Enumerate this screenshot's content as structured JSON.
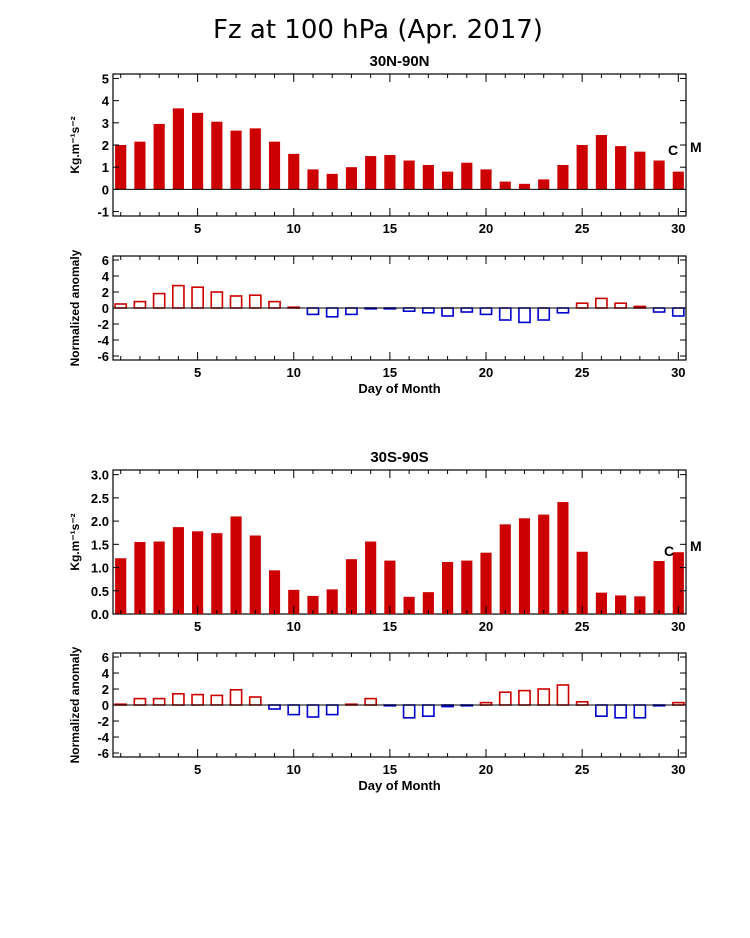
{
  "title": "Fz at 100 hPa (Apr. 2017)",
  "chart_data": [
    {
      "type": "bar",
      "title": "30N-90N",
      "ylabel": "Kg.m⁻¹s⁻²",
      "xlabel": "",
      "xlim": [
        0.6,
        30.4
      ],
      "ylim": [
        -1.2,
        5.2
      ],
      "yticks": [
        "-1",
        "0",
        "1",
        "2",
        "3",
        "4",
        "5"
      ],
      "xticks": [
        "5",
        "10",
        "15",
        "20",
        "25",
        "30"
      ],
      "categories": [
        1,
        2,
        3,
        4,
        5,
        6,
        7,
        8,
        9,
        10,
        11,
        12,
        13,
        14,
        15,
        16,
        17,
        18,
        19,
        20,
        21,
        22,
        23,
        24,
        25,
        26,
        27,
        28,
        29,
        30
      ],
      "values": [
        2.0,
        2.15,
        2.95,
        3.65,
        3.45,
        3.05,
        2.65,
        2.75,
        2.15,
        1.6,
        0.9,
        0.7,
        1.0,
        1.5,
        1.55,
        1.3,
        1.1,
        0.8,
        1.2,
        0.9,
        0.35,
        0.25,
        0.45,
        1.1,
        2.0,
        2.45,
        1.95,
        1.7,
        1.3,
        0.8
      ],
      "color": "#cc0000",
      "annotations": [
        "C",
        "M"
      ]
    },
    {
      "type": "bar",
      "title": "",
      "ylabel": "Normalized anomaly",
      "xlabel": "Day of Month",
      "xlim": [
        0.6,
        30.4
      ],
      "ylim": [
        -6.5,
        6.5
      ],
      "yticks": [
        "-6",
        "-4",
        "-2",
        "0",
        "2",
        "4",
        "6"
      ],
      "xticks": [
        "5",
        "10",
        "15",
        "20",
        "25",
        "30"
      ],
      "categories": [
        1,
        2,
        3,
        4,
        5,
        6,
        7,
        8,
        9,
        10,
        11,
        12,
        13,
        14,
        15,
        16,
        17,
        18,
        19,
        20,
        21,
        22,
        23,
        24,
        25,
        26,
        27,
        28,
        29,
        30
      ],
      "values": [
        0.5,
        0.8,
        1.8,
        2.8,
        2.6,
        2.0,
        1.5,
        1.6,
        0.8,
        0.1,
        -0.8,
        -1.1,
        -0.8,
        -0.1,
        -0.1,
        -0.4,
        -0.6,
        -1.0,
        -0.5,
        -0.8,
        -1.5,
        -1.8,
        -1.5,
        -0.6,
        0.6,
        1.2,
        0.6,
        0.2,
        -0.5,
        -1.0
      ],
      "positive_color": "#cc0000",
      "negative_color": "#0000cc",
      "style": "outline"
    },
    {
      "type": "bar",
      "title": "30S-90S",
      "ylabel": "Kg.m⁻¹s⁻²",
      "xlabel": "",
      "xlim": [
        0.6,
        30.4
      ],
      "ylim": [
        0.0,
        3.1
      ],
      "yticks": [
        "0.0",
        "0.5",
        "1.0",
        "1.5",
        "2.0",
        "2.5",
        "3.0"
      ],
      "xticks": [
        "5",
        "10",
        "15",
        "20",
        "25",
        "30"
      ],
      "categories": [
        1,
        2,
        3,
        4,
        5,
        6,
        7,
        8,
        9,
        10,
        11,
        12,
        13,
        14,
        15,
        16,
        17,
        18,
        19,
        20,
        21,
        22,
        23,
        24,
        25,
        26,
        27,
        28,
        29,
        30
      ],
      "values": [
        1.2,
        1.55,
        1.56,
        1.87,
        1.78,
        1.74,
        2.1,
        1.69,
        0.94,
        0.52,
        0.39,
        0.53,
        1.18,
        1.56,
        1.15,
        0.37,
        0.47,
        1.12,
        1.15,
        1.32,
        1.93,
        2.06,
        2.14,
        2.41,
        1.34,
        0.46,
        0.4,
        0.38,
        1.14,
        1.33
      ],
      "color": "#cc0000",
      "annotations": [
        "C",
        "M"
      ]
    },
    {
      "type": "bar",
      "title": "",
      "ylabel": "Normalized anomaly",
      "xlabel": "Day of Month",
      "xlim": [
        0.6,
        30.4
      ],
      "ylim": [
        -6.5,
        6.5
      ],
      "yticks": [
        "-6",
        "-4",
        "-2",
        "0",
        "2",
        "4",
        "6"
      ],
      "xticks": [
        "5",
        "10",
        "15",
        "20",
        "25",
        "30"
      ],
      "categories": [
        1,
        2,
        3,
        4,
        5,
        6,
        7,
        8,
        9,
        10,
        11,
        12,
        13,
        14,
        15,
        16,
        17,
        18,
        19,
        20,
        21,
        22,
        23,
        24,
        25,
        26,
        27,
        28,
        29,
        30
      ],
      "values": [
        0.1,
        0.8,
        0.8,
        1.4,
        1.3,
        1.2,
        1.9,
        1.0,
        -0.5,
        -1.2,
        -1.5,
        -1.2,
        0.1,
        0.8,
        -0.1,
        -1.6,
        -1.4,
        -0.2,
        -0.1,
        0.3,
        1.6,
        1.8,
        2.0,
        2.5,
        0.4,
        -1.4,
        -1.6,
        -1.6,
        -0.1,
        0.3
      ],
      "positive_color": "#cc0000",
      "negative_color": "#0000cc",
      "style": "outline"
    }
  ]
}
